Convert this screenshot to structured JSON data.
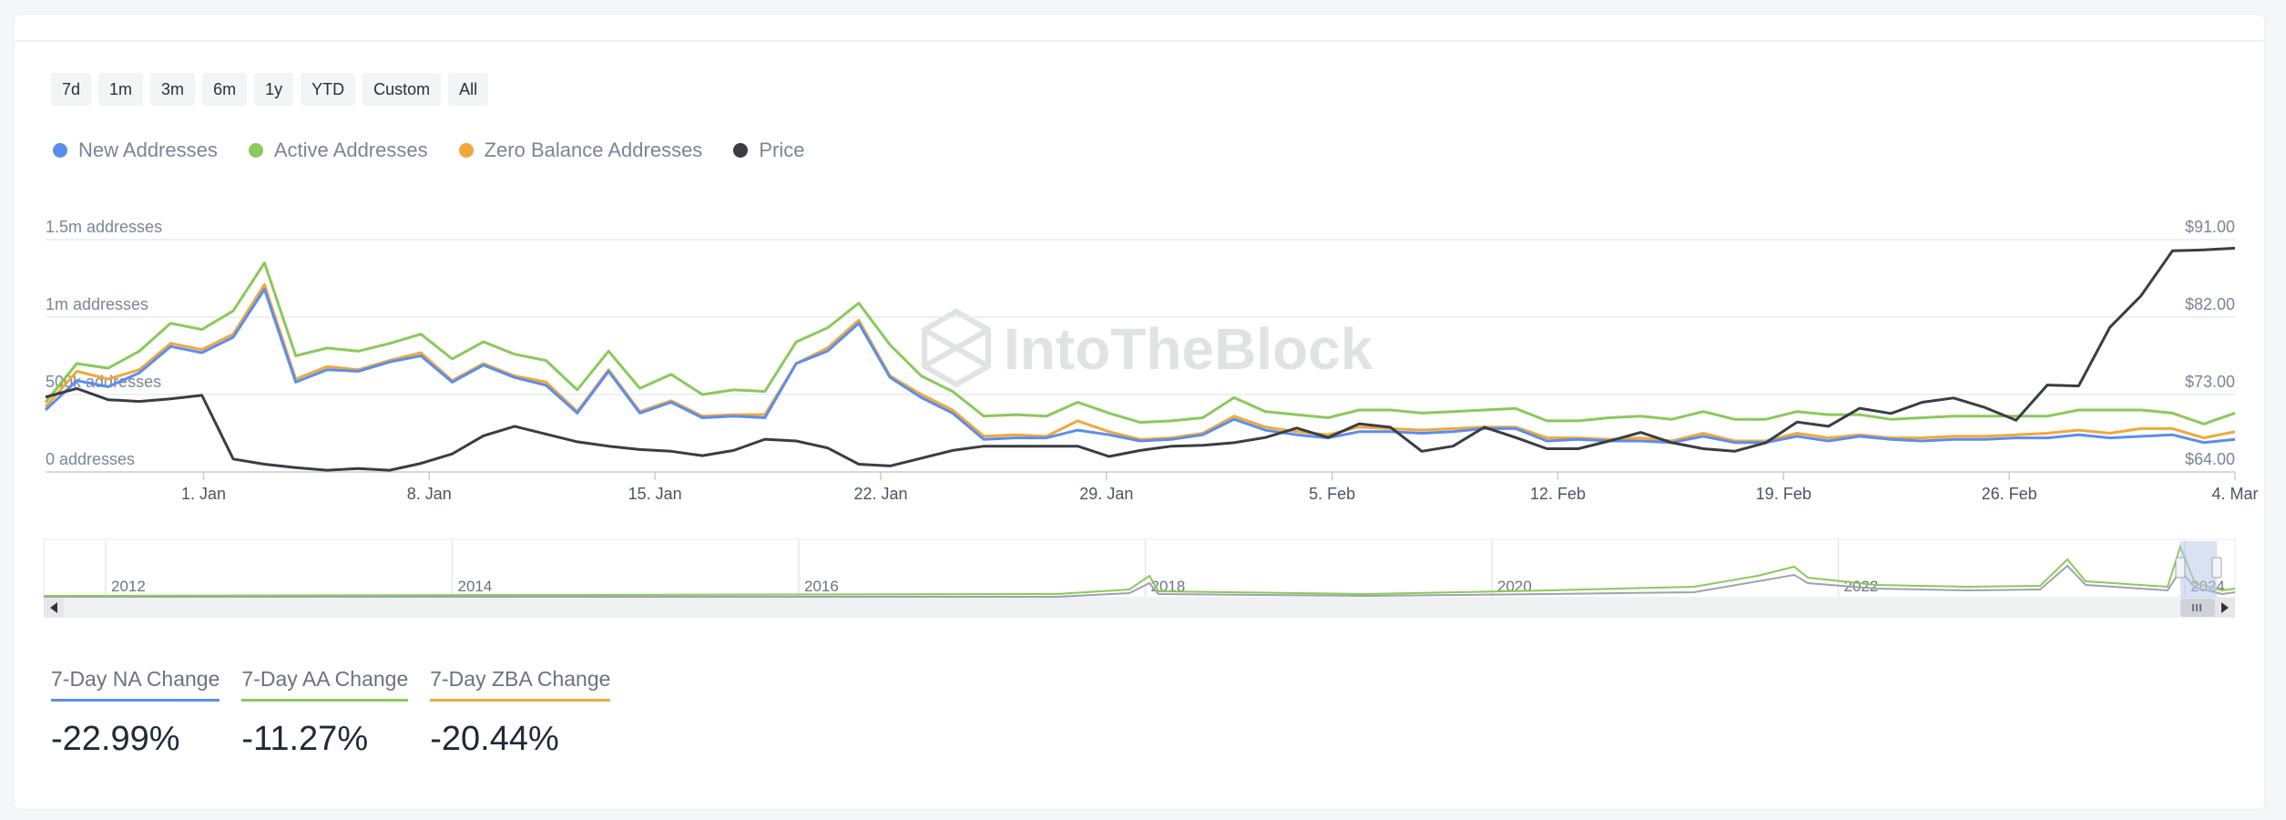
{
  "range_buttons": [
    "7d",
    "1m",
    "3m",
    "6m",
    "1y",
    "YTD",
    "Custom",
    "All"
  ],
  "colors": {
    "new": "#5b8def",
    "active": "#8bc95a",
    "zero": "#f0a83b",
    "price": "#3a3d42",
    "grid": "#e9ecef",
    "axis_text": "#7a8594"
  },
  "legend": [
    {
      "name": "New Addresses",
      "color": "#5b8def"
    },
    {
      "name": "Active Addresses",
      "color": "#8bc95a"
    },
    {
      "name": "Zero Balance Addresses",
      "color": "#f0a83b"
    },
    {
      "name": "Price",
      "color": "#3a3d42"
    }
  ],
  "watermark": "IntoTheBlock",
  "chart_data": {
    "type": "line",
    "title": "",
    "x_domain": [
      0,
      97
    ],
    "x_ticks": [
      {
        "label": "1. Jan",
        "x": 7
      },
      {
        "label": "8. Jan",
        "x": 17
      },
      {
        "label": "15. Jan",
        "x": 27
      },
      {
        "label": "22. Jan",
        "x": 37
      },
      {
        "label": "29. Jan",
        "x": 47
      },
      {
        "label": "5. Feb",
        "x": 57
      },
      {
        "label": "12. Feb",
        "x": 67
      },
      {
        "label": "19. Feb",
        "x": 77
      },
      {
        "label": "26. Feb",
        "x": 87
      },
      {
        "label": "4. Mar",
        "x": 97
      }
    ],
    "y_left": {
      "range": [
        0,
        1500000
      ],
      "ticks": [
        {
          "label": "0 addresses",
          "value": 0
        },
        {
          "label": "500k addresses",
          "value": 500000
        },
        {
          "label": "1m addresses",
          "value": 1000000
        },
        {
          "label": "1.5m addresses",
          "value": 1500000
        }
      ]
    },
    "y_right": {
      "range": [
        64,
        91
      ],
      "ticks": [
        {
          "label": "$64.00",
          "value": 64
        },
        {
          "label": "$73.00",
          "value": 73
        },
        {
          "label": "$82.00",
          "value": 82
        },
        {
          "label": "$91.00",
          "value": 91
        }
      ]
    },
    "series": [
      {
        "name": "Active Addresses",
        "axis": "left",
        "color": "#8bc95a",
        "values": [
          450000,
          700000,
          670000,
          780000,
          960000,
          920000,
          1040000,
          1350000,
          750000,
          800000,
          780000,
          830000,
          890000,
          730000,
          840000,
          760000,
          720000,
          530000,
          780000,
          540000,
          630000,
          500000,
          530000,
          520000,
          840000,
          930000,
          1090000,
          820000,
          620000,
          520000,
          360000,
          370000,
          360000,
          450000,
          380000,
          320000,
          330000,
          350000,
          480000,
          390000,
          370000,
          350000,
          400000,
          400000,
          380000,
          390000,
          400000,
          410000,
          330000,
          330000,
          350000,
          360000,
          340000,
          390000,
          340000,
          340000,
          390000,
          370000,
          370000,
          340000,
          350000,
          360000,
          360000,
          360000,
          360000,
          400000,
          400000,
          400000,
          380000,
          310000,
          380000
        ]
      },
      {
        "name": "Zero Balance Addresses",
        "axis": "left",
        "color": "#f0a83b",
        "values": [
          420000,
          650000,
          600000,
          660000,
          830000,
          790000,
          890000,
          1210000,
          600000,
          680000,
          660000,
          720000,
          770000,
          590000,
          700000,
          620000,
          580000,
          390000,
          660000,
          390000,
          460000,
          360000,
          370000,
          370000,
          700000,
          800000,
          980000,
          620000,
          500000,
          400000,
          230000,
          240000,
          230000,
          330000,
          260000,
          210000,
          220000,
          250000,
          360000,
          290000,
          260000,
          240000,
          290000,
          280000,
          270000,
          280000,
          290000,
          290000,
          220000,
          220000,
          210000,
          220000,
          200000,
          250000,
          200000,
          200000,
          250000,
          220000,
          240000,
          220000,
          220000,
          230000,
          230000,
          240000,
          250000,
          270000,
          250000,
          280000,
          280000,
          220000,
          260000
        ]
      },
      {
        "name": "New Addresses",
        "axis": "left",
        "color": "#5b8def",
        "values": [
          400000,
          590000,
          550000,
          640000,
          810000,
          770000,
          870000,
          1180000,
          580000,
          660000,
          650000,
          710000,
          750000,
          580000,
          690000,
          610000,
          560000,
          380000,
          650000,
          380000,
          450000,
          350000,
          360000,
          350000,
          700000,
          780000,
          960000,
          610000,
          480000,
          380000,
          210000,
          220000,
          220000,
          270000,
          240000,
          200000,
          210000,
          240000,
          340000,
          270000,
          240000,
          220000,
          260000,
          260000,
          250000,
          260000,
          280000,
          280000,
          200000,
          210000,
          200000,
          200000,
          190000,
          230000,
          190000,
          190000,
          230000,
          200000,
          230000,
          210000,
          200000,
          210000,
          210000,
          220000,
          220000,
          240000,
          220000,
          230000,
          240000,
          190000,
          210000
        ]
      },
      {
        "name": "Price",
        "axis": "right",
        "color": "#3a3d42",
        "values": [
          72.7,
          73.7,
          72.4,
          72.2,
          72.5,
          72.9,
          65.5,
          64.9,
          64.5,
          64.2,
          64.4,
          64.2,
          65.0,
          66.1,
          68.2,
          69.3,
          68.4,
          67.5,
          67.0,
          66.6,
          66.4,
          65.9,
          66.5,
          67.8,
          67.6,
          66.8,
          64.9,
          64.7,
          65.6,
          66.5,
          67.0,
          67.0,
          67.0,
          67.0,
          65.8,
          66.5,
          67.0,
          67.1,
          67.4,
          68.0,
          69.1,
          68.0,
          69.6,
          69.2,
          66.4,
          67.0,
          69.2,
          68.0,
          66.7,
          66.7,
          67.6,
          68.6,
          67.4,
          66.7,
          66.4,
          67.4,
          69.8,
          69.3,
          71.4,
          70.8,
          72.1,
          72.6,
          71.5,
          70.0,
          74.1,
          74.0,
          80.8,
          84.5,
          89.7,
          89.8,
          90.0
        ]
      }
    ]
  },
  "navigator": {
    "year_labels": [
      "2012",
      "2014",
      "2016",
      "2018",
      "2020",
      "2022",
      "2024"
    ]
  },
  "stats": [
    {
      "label": "7-Day NA Change",
      "value": "-22.99%",
      "color": "#5b8def"
    },
    {
      "label": "7-Day AA Change",
      "value": "-11.27%",
      "color": "#8bc95a"
    },
    {
      "label": "7-Day ZBA Change",
      "value": "-20.44%",
      "color": "#f0a83b"
    }
  ]
}
